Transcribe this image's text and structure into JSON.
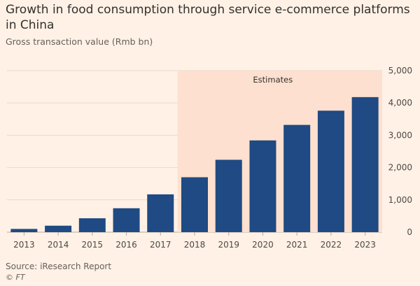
{
  "title": "Growth in food consumption through service e-commerce platforms in China",
  "subtitle": "Gross transaction value (Rmb bn)",
  "source": "Source: iResearch Report",
  "credit": "© FT",
  "colors": {
    "background": "#fff1e5",
    "bar": "#1f4a83",
    "estimate_shade": "#fde0cf",
    "grid": "#e6d9ce"
  },
  "chart_data": {
    "type": "bar",
    "title": "Growth in food consumption through service e-commerce platforms in China",
    "subtitle": "Gross transaction value (Rmb bn)",
    "categories": [
      "2013",
      "2014",
      "2015",
      "2016",
      "2017",
      "2018",
      "2019",
      "2020",
      "2021",
      "2022",
      "2023"
    ],
    "values": [
      100,
      200,
      430,
      740,
      1170,
      1700,
      2240,
      2840,
      3320,
      3760,
      4180
    ],
    "ylim": [
      0,
      5000
    ],
    "yticks": [
      0,
      1000,
      2000,
      3000,
      4000,
      5000
    ],
    "ytick_labels": [
      "0",
      "1,000",
      "2,000",
      "3,000",
      "4,000",
      "5,000"
    ],
    "y_axis_position": "right",
    "grid": true,
    "estimates": {
      "label": "Estimates",
      "from": "2018",
      "to": "2023"
    }
  }
}
